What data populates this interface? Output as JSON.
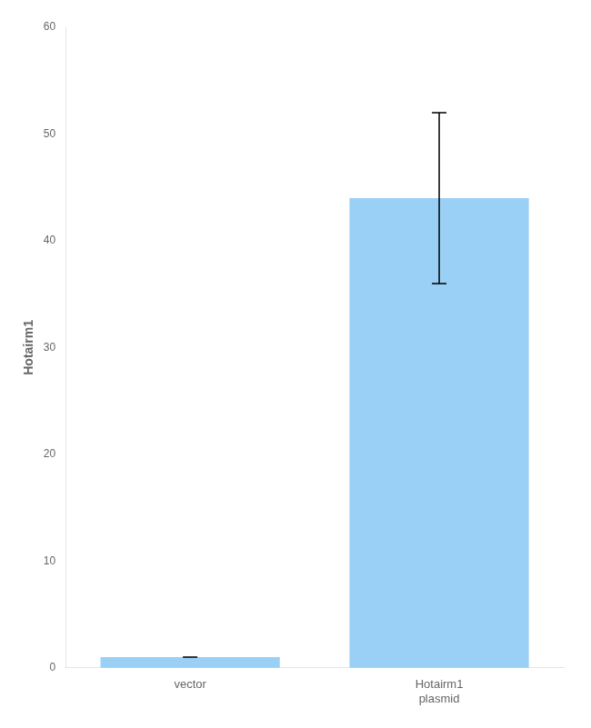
{
  "chart_data": {
    "type": "bar",
    "y_label": "Hotairm1",
    "categories": [
      "vector",
      "Hotairm1\nplasmid"
    ],
    "values": [
      1.0,
      44.0
    ],
    "errors": [
      0.0,
      8.0
    ],
    "ylim": [
      0,
      60
    ],
    "yticks": [
      0,
      10,
      20,
      30,
      40,
      50,
      60
    ],
    "grid": false
  }
}
